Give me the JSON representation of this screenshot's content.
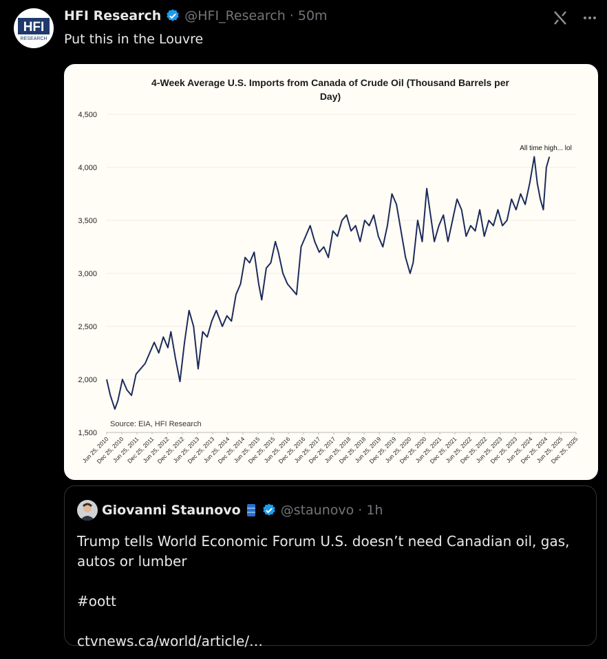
{
  "post": {
    "avatar_text": "HFI",
    "avatar_subtext": "RESEARCH",
    "name": "HFI Research",
    "handle_time": "@HFI_Research · 50m",
    "text": "Put this in the Louvre"
  },
  "quote": {
    "name": "Giovanni Staunovo",
    "handle_time": "@staunovo · 1h",
    "body": [
      "Trump tells World Economic Forum U.S. doesn’t need Canadian oil, gas, autos or lumber",
      "#oott",
      "ctvnews.ca/world/article/…"
    ]
  },
  "chart_data": {
    "type": "line",
    "title_lines": [
      "4-Week Average U.S. Imports from Canada of Crude Oil  (Thousand Barrels per",
      "Day)"
    ],
    "annotation": "All time high... lol",
    "source": "Source: EIA, HFI Research",
    "color": "#1b2a5c",
    "grid": true,
    "ylim": [
      1500,
      4500
    ],
    "yticks": [
      {
        "value": 1500,
        "label": "1,500"
      },
      {
        "value": 2000,
        "label": "2,000"
      },
      {
        "value": 2500,
        "label": "2,500"
      },
      {
        "value": 3000,
        "label": "3,000"
      },
      {
        "value": 3500,
        "label": "3,500"
      },
      {
        "value": 4000,
        "label": "4,000"
      },
      {
        "value": 4500,
        "label": "4,500"
      }
    ],
    "xlim": [
      2010.48,
      2025.98
    ],
    "xticks": [
      {
        "value": 2010.48,
        "label": "Jun 25, 2010"
      },
      {
        "value": 2010.98,
        "label": "Dec 25, 2010"
      },
      {
        "value": 2011.48,
        "label": "Jun 25, 2011"
      },
      {
        "value": 2011.98,
        "label": "Dec 25, 2011"
      },
      {
        "value": 2012.48,
        "label": "Jun 25, 2012"
      },
      {
        "value": 2012.98,
        "label": "Dec 25, 2012"
      },
      {
        "value": 2013.48,
        "label": "Jun 25, 2013"
      },
      {
        "value": 2013.98,
        "label": "Dec 25, 2013"
      },
      {
        "value": 2014.48,
        "label": "Jun 25, 2014"
      },
      {
        "value": 2014.98,
        "label": "Dec 25, 2014"
      },
      {
        "value": 2015.48,
        "label": "Jun 25, 2015"
      },
      {
        "value": 2015.98,
        "label": "Dec 25, 2015"
      },
      {
        "value": 2016.48,
        "label": "Jun 25, 2016"
      },
      {
        "value": 2016.98,
        "label": "Dec 25, 2016"
      },
      {
        "value": 2017.48,
        "label": "Jun 25, 2017"
      },
      {
        "value": 2017.98,
        "label": "Dec 25, 2017"
      },
      {
        "value": 2018.48,
        "label": "Jun 25, 2018"
      },
      {
        "value": 2018.98,
        "label": "Dec 25, 2018"
      },
      {
        "value": 2019.48,
        "label": "Jun 25, 2019"
      },
      {
        "value": 2019.98,
        "label": "Dec 25, 2019"
      },
      {
        "value": 2020.48,
        "label": "Jun 25, 2020"
      },
      {
        "value": 2020.98,
        "label": "Dec 25, 2020"
      },
      {
        "value": 2021.48,
        "label": "Jun 25, 2021"
      },
      {
        "value": 2021.98,
        "label": "Dec 25, 2021"
      },
      {
        "value": 2022.48,
        "label": "Jun 25, 2022"
      },
      {
        "value": 2022.98,
        "label": "Dec 25, 2022"
      },
      {
        "value": 2023.48,
        "label": "Jun 25, 2023"
      },
      {
        "value": 2023.98,
        "label": "Dec 25, 2023"
      },
      {
        "value": 2024.48,
        "label": "Jun 25, 2024"
      },
      {
        "value": 2024.98,
        "label": "Dec 25, 2024"
      },
      {
        "value": 2025.48,
        "label": "Jun 25, 2025"
      },
      {
        "value": 2025.98,
        "label": "Dec 25, 2025"
      }
    ],
    "x": [
      2010.48,
      2010.6,
      2010.75,
      2010.85,
      2011.0,
      2011.15,
      2011.3,
      2011.45,
      2011.6,
      2011.75,
      2011.9,
      2012.05,
      2012.2,
      2012.35,
      2012.5,
      2012.6,
      2012.75,
      2012.9,
      2013.05,
      2013.2,
      2013.35,
      2013.5,
      2013.65,
      2013.8,
      2013.95,
      2014.1,
      2014.3,
      2014.45,
      2014.6,
      2014.75,
      2014.9,
      2015.05,
      2015.2,
      2015.35,
      2015.5,
      2015.6,
      2015.75,
      2015.9,
      2016.05,
      2016.15,
      2016.3,
      2016.45,
      2016.6,
      2016.75,
      2016.9,
      2017.05,
      2017.2,
      2017.35,
      2017.5,
      2017.65,
      2017.8,
      2017.95,
      2018.1,
      2018.25,
      2018.4,
      2018.55,
      2018.7,
      2018.85,
      2019.0,
      2019.15,
      2019.3,
      2019.45,
      2019.6,
      2019.75,
      2019.9,
      2020.05,
      2020.2,
      2020.35,
      2020.5,
      2020.6,
      2020.75,
      2020.9,
      2021.05,
      2021.15,
      2021.3,
      2021.45,
      2021.6,
      2021.75,
      2021.9,
      2022.05,
      2022.2,
      2022.35,
      2022.5,
      2022.65,
      2022.8,
      2022.95,
      2023.1,
      2023.25,
      2023.4,
      2023.55,
      2023.7,
      2023.85,
      2024.0,
      2024.15,
      2024.3,
      2024.45,
      2024.6,
      2024.7,
      2024.8,
      2024.9,
      2025.0,
      2025.1
    ],
    "values": [
      2000,
      1850,
      1720,
      1800,
      2000,
      1900,
      1850,
      2050,
      2100,
      2150,
      2250,
      2350,
      2250,
      2400,
      2300,
      2450,
      2200,
      1980,
      2350,
      2650,
      2500,
      2100,
      2450,
      2400,
      2550,
      2650,
      2500,
      2600,
      2550,
      2800,
      2900,
      3150,
      3100,
      3200,
      2900,
      2750,
      3050,
      3100,
      3300,
      3200,
      3000,
      2900,
      2850,
      2800,
      3250,
      3350,
      3450,
      3300,
      3200,
      3250,
      3150,
      3400,
      3350,
      3500,
      3550,
      3400,
      3450,
      3300,
      3500,
      3450,
      3550,
      3350,
      3250,
      3450,
      3750,
      3650,
      3400,
      3150,
      3000,
      3100,
      3500,
      3300,
      3800,
      3600,
      3300,
      3450,
      3550,
      3300,
      3500,
      3700,
      3600,
      3350,
      3450,
      3400,
      3600,
      3350,
      3500,
      3450,
      3600,
      3450,
      3500,
      3700,
      3600,
      3750,
      3650,
      3850,
      4100,
      3850,
      3700,
      3600,
      4000,
      4100
    ]
  }
}
